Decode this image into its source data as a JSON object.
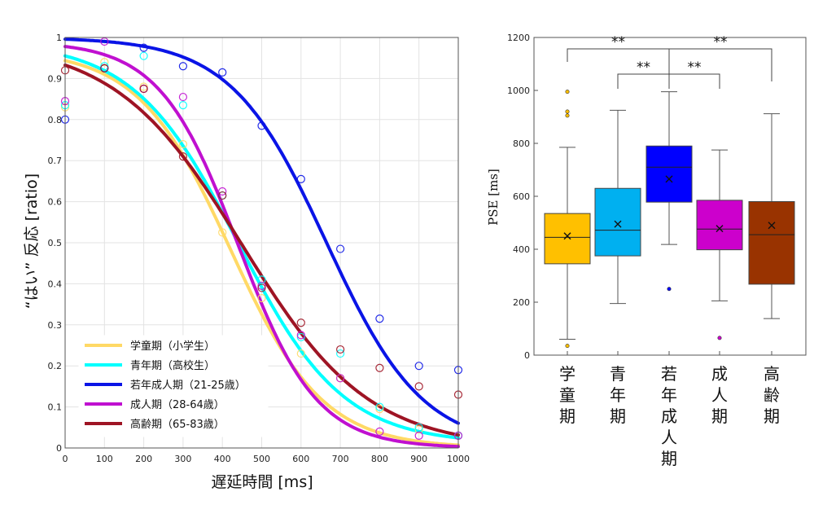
{
  "chart_data": [
    {
      "type": "scatter",
      "xlabel": "遅延時間 [ms]",
      "ylabel": "“はい” 反応 [ratio]",
      "xlim": [
        0,
        1000
      ],
      "ylim": [
        0,
        1
      ],
      "grid": true,
      "legend_position": "bottom-left",
      "x_ticks": [
        0,
        100,
        200,
        300,
        400,
        500,
        600,
        700,
        800,
        900,
        1000
      ],
      "x_tick_labels": [
        "0",
        "100",
        "200",
        "300",
        "400",
        "500",
        "600",
        "700",
        "800",
        "900",
        "1000"
      ],
      "y_ticks": [
        0,
        0.1,
        0.2,
        0.3,
        0.4,
        0.5,
        0.6,
        0.7,
        0.8,
        0.9,
        1
      ],
      "y_tick_labels": [
        "0",
        "0.1",
        "0.2",
        "0.3",
        "0.4",
        "0.5",
        "0.6",
        "0.7",
        "0.8",
        "0.9",
        "1"
      ],
      "series": [
        {
          "name": "学童期（小学生）",
          "color": "#FFD966",
          "curve": {
            "x50": 420,
            "slope": 0.0085,
            "low": 0.0,
            "high": 0.97
          },
          "points": [
            [
              0,
              0.83
            ],
            [
              100,
              0.94
            ],
            [
              200,
              0.88
            ],
            [
              300,
              0.74
            ],
            [
              400,
              0.525
            ],
            [
              500,
              0.365
            ],
            [
              600,
              0.23
            ],
            [
              700,
              0.17
            ],
            [
              800,
              0.095
            ],
            [
              900,
              0.045
            ],
            [
              1000,
              0.03
            ]
          ]
        },
        {
          "name": "青年期（高校生）",
          "color": "#00FFFF",
          "curve": {
            "x50": 440,
            "slope": 0.0075,
            "low": 0.01,
            "high": 0.99
          },
          "points": [
            [
              0,
              0.835
            ],
            [
              100,
              0.93
            ],
            [
              200,
              0.955
            ],
            [
              300,
              0.835
            ],
            [
              400,
              0.615
            ],
            [
              500,
              0.41
            ],
            [
              600,
              0.27
            ],
            [
              700,
              0.23
            ],
            [
              800,
              0.1
            ],
            [
              900,
              0.05
            ],
            [
              1000,
              0.03
            ]
          ]
        },
        {
          "name": "若年成人期（21-25歳）",
          "color": "#0A14E6",
          "curve": {
            "x50": 665,
            "slope": 0.0082,
            "low": 0.0,
            "high": 1.0
          },
          "points": [
            [
              0,
              0.8
            ],
            [
              100,
              0.925
            ],
            [
              200,
              0.975
            ],
            [
              300,
              0.93
            ],
            [
              400,
              0.915
            ],
            [
              500,
              0.785
            ],
            [
              600,
              0.655
            ],
            [
              700,
              0.485
            ],
            [
              800,
              0.315
            ],
            [
              900,
              0.2
            ],
            [
              1000,
              0.19
            ]
          ]
        },
        {
          "name": "成人期（28-64歳）",
          "color": "#C010D0",
          "curve": {
            "x50": 440,
            "slope": 0.01,
            "low": 0.0,
            "high": 0.99
          },
          "points": [
            [
              0,
              0.845
            ],
            [
              100,
              0.99
            ],
            [
              200,
              0.875
            ],
            [
              300,
              0.855
            ],
            [
              400,
              0.625
            ],
            [
              500,
              0.395
            ],
            [
              600,
              0.275
            ],
            [
              700,
              0.17
            ],
            [
              800,
              0.04
            ],
            [
              900,
              0.03
            ],
            [
              1000,
              0.03
            ]
          ]
        },
        {
          "name": "高齢期（65-83歳）",
          "color": "#9E1424",
          "curve": {
            "x50": 450,
            "slope": 0.0062,
            "low": 0.0,
            "high": 0.99
          },
          "points": [
            [
              0,
              0.92
            ],
            [
              100,
              0.925
            ],
            [
              200,
              0.875
            ],
            [
              300,
              0.71
            ],
            [
              400,
              0.615
            ],
            [
              500,
              0.39
            ],
            [
              600,
              0.305
            ],
            [
              700,
              0.24
            ],
            [
              800,
              0.195
            ],
            [
              900,
              0.15
            ],
            [
              1000,
              0.13
            ]
          ]
        }
      ]
    },
    {
      "type": "box",
      "ylabel": "PSE [ms]",
      "ylim": [
        0,
        1200
      ],
      "y_ticks": [
        0,
        200,
        400,
        600,
        800,
        1000,
        1200
      ],
      "y_tick_labels": [
        "0",
        "200",
        "400",
        "600",
        "800",
        "1000",
        "1200"
      ],
      "grid": false,
      "categories": [
        "学\n童\n期",
        "青\n年\n期",
        "若\n年\n成\n人\n期",
        "成\n人\n期",
        "高\n齢\n期"
      ],
      "boxes": [
        {
          "color": "#FFC000",
          "whisker_low": 60,
          "q1": 345,
          "median": 445,
          "q3": 535,
          "whisker_high": 785,
          "mean": 450,
          "outliers": [
            35,
            905,
            920,
            995
          ]
        },
        {
          "color": "#00B0F0",
          "whisker_low": 195,
          "q1": 375,
          "median": 472,
          "q3": 630,
          "whisker_high": 925,
          "mean": 495,
          "outliers": []
        },
        {
          "color": "#0000FF",
          "whisker_low": 418,
          "q1": 578,
          "median": 710,
          "q3": 790,
          "whisker_high": 995,
          "mean": 665,
          "outliers": [
            250
          ]
        },
        {
          "color": "#CC00CC",
          "whisker_low": 205,
          "q1": 398,
          "median": 476,
          "q3": 585,
          "whisker_high": 775,
          "mean": 478,
          "outliers": [
            65
          ]
        },
        {
          "color": "#993300",
          "whisker_low": 138,
          "q1": 268,
          "median": 455,
          "q3": 580,
          "whisker_high": 912,
          "mean": 490,
          "outliers": []
        }
      ],
      "significance": [
        {
          "from": 0,
          "to": 2,
          "label": "**"
        },
        {
          "from": 1,
          "to": 2,
          "label": "**"
        },
        {
          "from": 2,
          "to": 3,
          "label": "**"
        },
        {
          "from": 2,
          "to": 4,
          "label": "**"
        }
      ]
    }
  ]
}
